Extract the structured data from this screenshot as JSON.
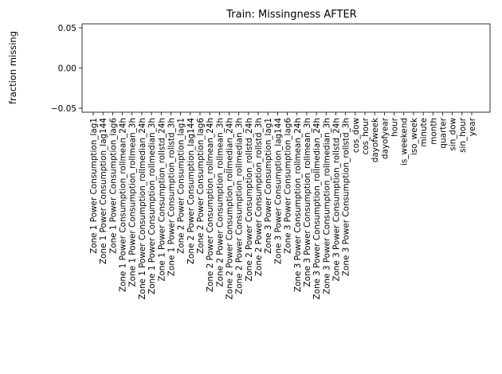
{
  "chart_data": {
    "type": "bar",
    "title": "Train: Missingness AFTER",
    "xlabel": "",
    "ylabel": "fraction missing",
    "ylim": [
      -0.055,
      0.055
    ],
    "yticks": [
      "0.05",
      "0.00",
      "−0.05"
    ],
    "ytick_values": [
      0.05,
      0.0,
      -0.05
    ],
    "grid": false,
    "categories": [
      "Zone 1 Power Consumption_lag1",
      "Zone 1 Power Consumption_lag144",
      "Zone 1 Power Consumption_lag6",
      "Zone 1 Power Consumption_rollmean_24h",
      "Zone 1 Power Consumption_rollmean_3h",
      "Zone 1 Power Consumption_rollmedian_24h",
      "Zone 1 Power Consumption_rollmedian_3h",
      "Zone 1 Power Consumption_rollstd_24h",
      "Zone 1 Power Consumption_rollstd_3h",
      "Zone 2 Power Consumption_lag1",
      "Zone 2 Power Consumption_lag144",
      "Zone 2 Power Consumption_lag6",
      "Zone 2 Power Consumption_rollmean_24h",
      "Zone 2 Power Consumption_rollmean_3h",
      "Zone 2 Power Consumption_rollmedian_24h",
      "Zone 2 Power Consumption_rollmedian_3h",
      "Zone 2 Power Consumption_rollstd_24h",
      "Zone 2 Power Consumption_rollstd_3h",
      "Zone 3 Power Consumption_lag1",
      "Zone 3 Power Consumption_lag144",
      "Zone 3 Power Consumption_lag6",
      "Zone 3 Power Consumption_rollmean_24h",
      "Zone 3 Power Consumption_rollmean_3h",
      "Zone 3 Power Consumption_rollmedian_24h",
      "Zone 3 Power Consumption_rollmedian_3h",
      "Zone 3 Power Consumption_rollstd_24h",
      "Zone 3 Power Consumption_rollstd_3h",
      "cos_dow",
      "cos_hour",
      "dayofweek",
      "dayofyear",
      "hour",
      "is_weekend",
      "iso_week",
      "minute",
      "month",
      "quarter",
      "sin_dow",
      "sin_hour",
      "year"
    ],
    "values": [
      0,
      0,
      0,
      0,
      0,
      0,
      0,
      0,
      0,
      0,
      0,
      0,
      0,
      0,
      0,
      0,
      0,
      0,
      0,
      0,
      0,
      0,
      0,
      0,
      0,
      0,
      0,
      0,
      0,
      0,
      0,
      0,
      0,
      0,
      0,
      0,
      0,
      0,
      0,
      0
    ]
  }
}
